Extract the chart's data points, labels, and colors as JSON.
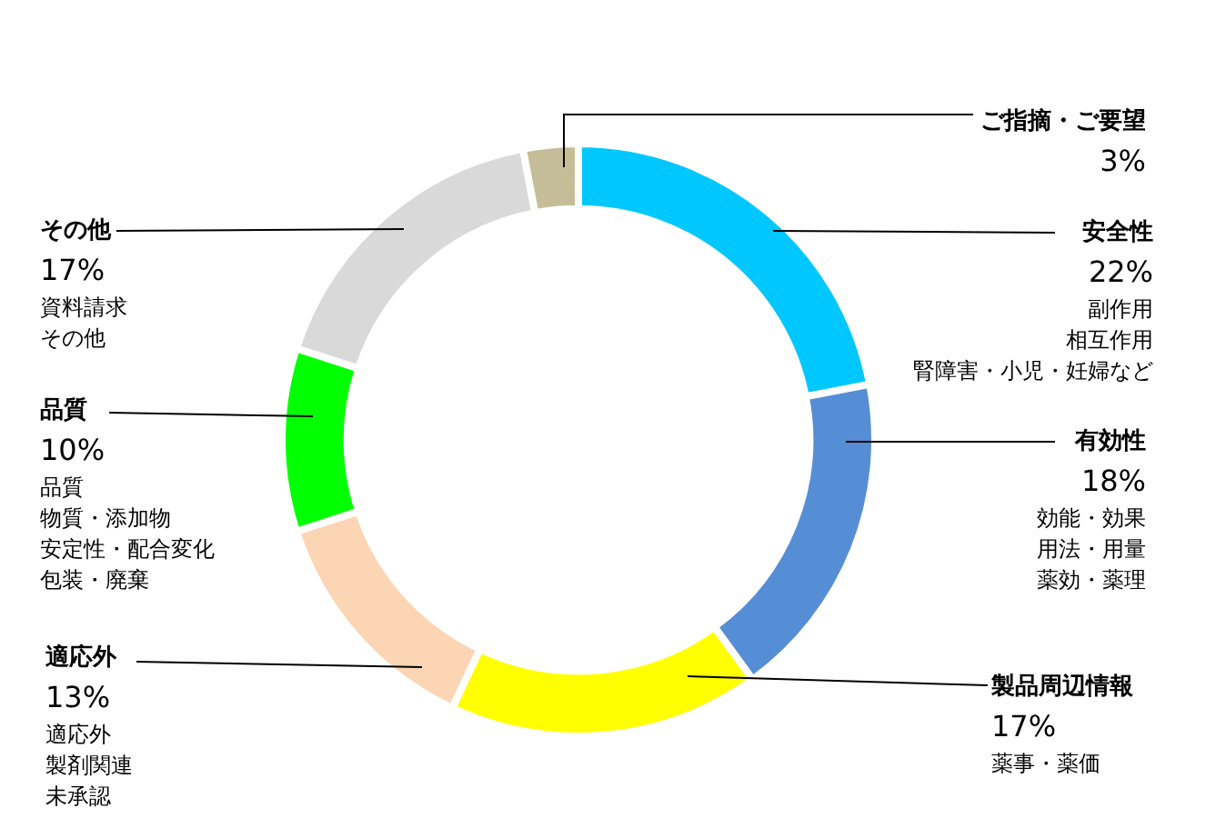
{
  "chart_data": {
    "type": "donut",
    "categories": [
      "安全性",
      "有効性",
      "製品周辺情報",
      "適応外",
      "品質",
      "その他",
      "ご指摘・ご要望"
    ],
    "values": [
      22,
      18,
      17,
      13,
      10,
      17,
      3
    ],
    "value_labels": [
      "22%",
      "18%",
      "17%",
      "13%",
      "10%",
      "17%",
      "3%"
    ],
    "colors": [
      "#00c8ff",
      "#558ed5",
      "#ffff00",
      "#fcd5b5",
      "#00ff00",
      "#d9d9d9",
      "#c4bd97"
    ],
    "annotations": [
      "副作用",
      "相互作用",
      "腎障害・小児・妊婦など",
      "効能・効果",
      "用法・用量",
      "薬効・薬理",
      "薬事・薬価",
      "適応外",
      "製剤関連",
      "未承認",
      "品質",
      "物質・添加物",
      "安定性・配合変化",
      "包装・廃棄",
      "資料請求",
      "その他"
    ],
    "legend": false
  }
}
